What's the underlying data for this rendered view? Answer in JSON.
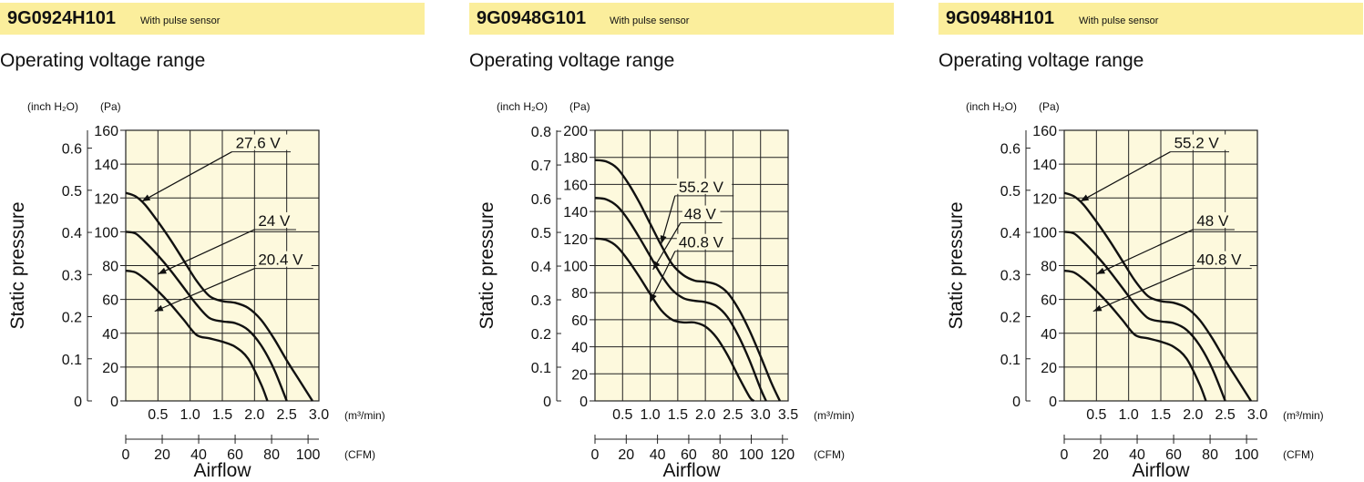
{
  "chart_data": [
    {
      "type": "line",
      "model": "9G0924H101",
      "feature": "With pulse sensor",
      "title": "Operating voltage range",
      "ylabel": "Static pressure",
      "xlabel": "Airflow",
      "y_unit_inch": "(inch H₂O)",
      "y_unit_pa": "(Pa)",
      "x_unit_m3": "(m³/min)",
      "x_unit_cfm": "(CFM)",
      "xlim": [
        0,
        3.0
      ],
      "ylim": [
        0,
        160
      ],
      "x_ticks": [
        "0.5",
        "1.0",
        "1.5",
        "2.0",
        "2.5",
        "3.0"
      ],
      "y_ticks_pa": [
        "0",
        "20",
        "40",
        "60",
        "80",
        "100",
        "120",
        "140",
        "160"
      ],
      "y_ticks_inch": [
        "0",
        "0.1",
        "0.2",
        "0.3",
        "0.4",
        "0.5",
        "0.6"
      ],
      "cfm_ticks": [
        "0",
        "20",
        "40",
        "60",
        "80",
        "100"
      ],
      "grid": true,
      "series": [
        {
          "name": "27.6 V",
          "x": [
            0,
            0.15,
            0.3,
            0.5,
            0.7,
            0.9,
            1.1,
            1.3,
            1.5,
            1.7,
            1.9,
            2.1,
            2.3,
            2.5,
            2.7,
            2.9
          ],
          "y": [
            123,
            121,
            116,
            106,
            95,
            83,
            71,
            62,
            59,
            58,
            55,
            48,
            37,
            24,
            12,
            0
          ]
        },
        {
          "name": "24 V",
          "x": [
            0,
            0.15,
            0.3,
            0.5,
            0.7,
            0.9,
            1.1,
            1.3,
            1.5,
            1.7,
            1.9,
            2.1,
            2.3,
            2.5
          ],
          "y": [
            100,
            99,
            94,
            86,
            77,
            67,
            57,
            49,
            47,
            46,
            42,
            33,
            19,
            0
          ]
        },
        {
          "name": "20.4 V",
          "x": [
            0,
            0.15,
            0.3,
            0.5,
            0.7,
            0.9,
            1.1,
            1.3,
            1.5,
            1.7,
            1.9,
            2.1,
            2.2
          ],
          "y": [
            77,
            76,
            72,
            65,
            57,
            48,
            39,
            37,
            35,
            32,
            25,
            10,
            0
          ]
        }
      ],
      "annotations": [
        {
          "text": "27.6 V",
          "series": "27.6 V",
          "at_x": 0.25,
          "at_y": 118,
          "label_x": 1.65,
          "label_y": 150
        },
        {
          "text": "24 V",
          "series": "24 V",
          "at_x": 0.5,
          "at_y": 75,
          "label_x": 2.0,
          "label_y": 104
        },
        {
          "text": "20.4 V",
          "series": "20.4 V",
          "at_x": 0.45,
          "at_y": 53,
          "label_x": 2.0,
          "label_y": 81
        }
      ]
    },
    {
      "type": "line",
      "model": "9G0948G101",
      "feature": "With pulse sensor",
      "title": "Operating voltage range",
      "ylabel": "Static pressure",
      "xlabel": "Airflow",
      "y_unit_inch": "(inch H₂O)",
      "y_unit_pa": "(Pa)",
      "x_unit_m3": "(m³/min)",
      "x_unit_cfm": "(CFM)",
      "xlim": [
        0,
        3.5
      ],
      "ylim": [
        0,
        200
      ],
      "x_ticks": [
        "0.5",
        "1.0",
        "1.5",
        "2.0",
        "2.5",
        "3.0",
        "3.5"
      ],
      "y_ticks_pa": [
        "0",
        "20",
        "40",
        "60",
        "80",
        "100",
        "120",
        "140",
        "160",
        "180",
        "200"
      ],
      "y_ticks_inch": [
        "0",
        "0.1",
        "0.2",
        "0.3",
        "0.4",
        "0.5",
        "0.6",
        "0.7",
        "0.8"
      ],
      "cfm_ticks": [
        "0",
        "20",
        "40",
        "60",
        "80",
        "100",
        "120"
      ],
      "grid": true,
      "series": [
        {
          "name": "55.2 V",
          "x": [
            0,
            0.2,
            0.4,
            0.6,
            0.8,
            1.0,
            1.2,
            1.4,
            1.6,
            1.8,
            2.0,
            2.2,
            2.4,
            2.6,
            2.8,
            3.0,
            3.2,
            3.35
          ],
          "y": [
            178,
            177,
            172,
            161,
            147,
            131,
            115,
            101,
            93,
            89,
            88,
            86,
            80,
            68,
            52,
            33,
            13,
            0
          ]
        },
        {
          "name": "48 V",
          "x": [
            0,
            0.2,
            0.4,
            0.6,
            0.8,
            1.0,
            1.2,
            1.4,
            1.6,
            1.8,
            2.0,
            2.2,
            2.4,
            2.6,
            2.8,
            3.0,
            3.1
          ],
          "y": [
            150,
            149,
            144,
            134,
            121,
            107,
            93,
            82,
            76,
            74,
            73,
            70,
            62,
            48,
            30,
            9,
            0
          ]
        },
        {
          "name": "40.8 V",
          "x": [
            0,
            0.2,
            0.4,
            0.6,
            0.8,
            1.0,
            1.2,
            1.4,
            1.6,
            1.8,
            2.0,
            2.2,
            2.4,
            2.6,
            2.8,
            2.88
          ],
          "y": [
            120,
            119,
            114,
            104,
            92,
            79,
            67,
            60,
            58,
            58,
            55,
            47,
            34,
            18,
            3,
            0
          ]
        }
      ],
      "annotations": [
        {
          "text": "55.2 V",
          "series": "55.2 V",
          "at_x": 1.2,
          "at_y": 116,
          "label_x": 1.45,
          "label_y": 155
        },
        {
          "text": "48 V",
          "series": "48 V",
          "at_x": 1.05,
          "at_y": 97,
          "label_x": 1.55,
          "label_y": 135
        },
        {
          "text": "40.8 V",
          "series": "40.8 V",
          "at_x": 1.0,
          "at_y": 73,
          "label_x": 1.45,
          "label_y": 114
        }
      ]
    },
    {
      "type": "line",
      "model": "9G0948H101",
      "feature": "With pulse sensor",
      "title": "Operating voltage range",
      "ylabel": "Static pressure",
      "xlabel": "Airflow",
      "y_unit_inch": "(inch H₂O)",
      "y_unit_pa": "(Pa)",
      "x_unit_m3": "(m³/min)",
      "x_unit_cfm": "(CFM)",
      "xlim": [
        0,
        3.0
      ],
      "ylim": [
        0,
        160
      ],
      "x_ticks": [
        "0.5",
        "1.0",
        "1.5",
        "2.0",
        "2.5",
        "3.0"
      ],
      "y_ticks_pa": [
        "0",
        "20",
        "40",
        "60",
        "80",
        "100",
        "120",
        "140",
        "160"
      ],
      "y_ticks_inch": [
        "0",
        "0.1",
        "0.2",
        "0.3",
        "0.4",
        "0.5",
        "0.6"
      ],
      "cfm_ticks": [
        "0",
        "20",
        "40",
        "60",
        "80",
        "100"
      ],
      "grid": true,
      "series": [
        {
          "name": "55.2 V",
          "x": [
            0,
            0.15,
            0.3,
            0.5,
            0.7,
            0.9,
            1.1,
            1.3,
            1.5,
            1.7,
            1.9,
            2.1,
            2.3,
            2.5,
            2.7,
            2.9
          ],
          "y": [
            123,
            121,
            116,
            106,
            95,
            83,
            71,
            62,
            59,
            58,
            55,
            48,
            37,
            24,
            12,
            0
          ]
        },
        {
          "name": "48 V",
          "x": [
            0,
            0.15,
            0.3,
            0.5,
            0.7,
            0.9,
            1.1,
            1.3,
            1.5,
            1.7,
            1.9,
            2.1,
            2.3,
            2.5
          ],
          "y": [
            100,
            99,
            94,
            86,
            77,
            67,
            57,
            49,
            47,
            46,
            42,
            33,
            19,
            0
          ]
        },
        {
          "name": "40.8 V",
          "x": [
            0,
            0.15,
            0.3,
            0.5,
            0.7,
            0.9,
            1.1,
            1.3,
            1.5,
            1.7,
            1.9,
            2.1,
            2.2
          ],
          "y": [
            77,
            76,
            72,
            65,
            57,
            48,
            39,
            37,
            35,
            32,
            25,
            10,
            0
          ]
        }
      ],
      "annotations": [
        {
          "text": "55.2 V",
          "series": "55.2 V",
          "at_x": 0.25,
          "at_y": 118,
          "label_x": 1.65,
          "label_y": 150
        },
        {
          "text": "48 V",
          "series": "48 V",
          "at_x": 0.5,
          "at_y": 75,
          "label_x": 2.0,
          "label_y": 104
        },
        {
          "text": "40.8 V",
          "series": "40.8 V",
          "at_x": 0.45,
          "at_y": 53,
          "label_x": 2.0,
          "label_y": 81
        }
      ]
    }
  ]
}
